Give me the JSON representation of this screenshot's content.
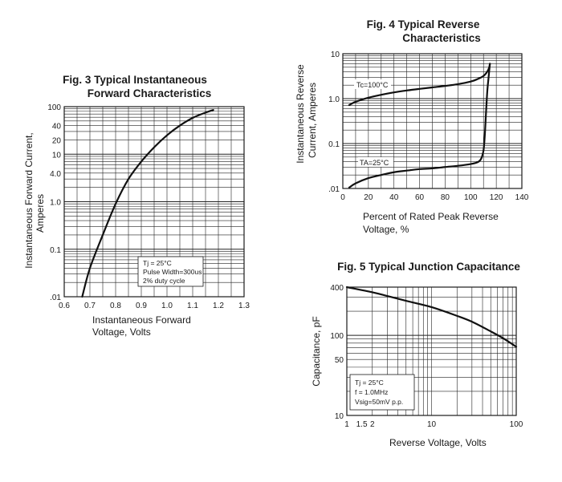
{
  "chart_data": [
    {
      "id": "fig3",
      "type": "line",
      "title_line1": "Fig. 3 Typical Instantaneous",
      "title_line2": "Forward Characteristics",
      "xlabel_line1": "Instantaneous Forward",
      "xlabel_line2": "Voltage, Volts",
      "ylabel_line1": "Instantaneous Forward Current,",
      "ylabel_line2": "Amperes",
      "x_scale": "linear",
      "y_scale": "log",
      "xlim": [
        0.6,
        1.3
      ],
      "ylim": [
        0.01,
        100
      ],
      "x_ticks": [
        0.6,
        0.7,
        0.8,
        0.9,
        1.0,
        1.1,
        1.2,
        1.3
      ],
      "x_tick_labels": [
        "0.6",
        "0.7",
        "0.8",
        "0.9",
        "1.0",
        "1.1",
        "1.2",
        "1.3"
      ],
      "y_ticks": [
        0.01,
        0.1,
        1.0,
        4.0,
        10,
        20,
        40,
        100
      ],
      "y_tick_labels": [
        ".01",
        "0.1",
        "1.0",
        "4.0",
        "10",
        "20",
        "40",
        "100"
      ],
      "grid": true,
      "annotation_lines": [
        "Tj = 25°C",
        "Pulse Width=300us",
        "2% duty cycle"
      ],
      "series": [
        {
          "name": "",
          "x": [
            0.67,
            0.7,
            0.75,
            0.8,
            0.85,
            0.9,
            0.95,
            1.0,
            1.05,
            1.1,
            1.15,
            1.18
          ],
          "y": [
            0.01,
            0.04,
            0.2,
            0.9,
            3.0,
            7.0,
            14,
            25,
            40,
            58,
            75,
            85
          ]
        }
      ]
    },
    {
      "id": "fig4",
      "type": "line",
      "title_line1": "Fig. 4 Typical Reverse",
      "title_line2": "Characteristics",
      "xlabel_line1": "Percent of Rated Peak Reverse",
      "xlabel_line2": "Voltage, %",
      "ylabel_line1": "Instantaneous Reverse",
      "ylabel_line2": "Current, Amperes",
      "x_scale": "linear",
      "y_scale": "log",
      "xlim": [
        0,
        140
      ],
      "ylim": [
        0.01,
        10
      ],
      "x_ticks": [
        0,
        20,
        40,
        60,
        80,
        100,
        120,
        140
      ],
      "x_tick_labels": [
        "0",
        "20",
        "40",
        "60",
        "80",
        "100",
        "120",
        "140"
      ],
      "y_ticks": [
        0.01,
        0.1,
        1.0,
        10
      ],
      "y_tick_labels": [
        ".01",
        "0.1",
        "1.0",
        "10"
      ],
      "grid": true,
      "series": [
        {
          "name": "Tc=100°C",
          "x": [
            5,
            10,
            20,
            30,
            40,
            50,
            60,
            70,
            80,
            90,
            100,
            105,
            110,
            113,
            114.5,
            115
          ],
          "y": [
            0.72,
            0.85,
            1.05,
            1.22,
            1.38,
            1.52,
            1.65,
            1.78,
            1.92,
            2.1,
            2.4,
            2.7,
            3.2,
            4.0,
            5.0,
            6.0
          ]
        },
        {
          "name": "TA=25°C",
          "x": [
            5,
            10,
            20,
            30,
            40,
            50,
            60,
            70,
            80,
            90,
            100,
            105,
            108,
            110,
            111,
            112,
            113,
            114,
            115
          ],
          "y": [
            0.0105,
            0.013,
            0.017,
            0.02,
            0.023,
            0.025,
            0.027,
            0.028,
            0.03,
            0.032,
            0.035,
            0.038,
            0.045,
            0.07,
            0.15,
            0.5,
            1.5,
            3.0,
            6.0
          ]
        }
      ]
    },
    {
      "id": "fig5",
      "type": "line",
      "title_line1": "Fig. 5 Typical Junction Capacitance",
      "title_line2": "",
      "xlabel_line1": "Reverse Voltage, Volts",
      "ylabel_line1": "Capacitance, pF",
      "x_scale": "log",
      "y_scale": "log",
      "xlim": [
        1,
        100
      ],
      "ylim": [
        10,
        400
      ],
      "x_ticks": [
        1,
        1.5,
        2,
        10,
        100
      ],
      "x_tick_labels": [
        "1",
        "1.5",
        "2",
        "10",
        "100"
      ],
      "y_ticks": [
        10,
        50,
        100,
        400
      ],
      "y_tick_labels": [
        "10",
        "50",
        "100",
        "400"
      ],
      "grid": true,
      "annotation_lines": [
        "Tj = 25°C",
        "f = 1.0MHz",
        "Vsig=50mV p.p."
      ],
      "series": [
        {
          "name": "",
          "x": [
            1,
            2,
            3,
            5,
            10,
            20,
            30,
            50,
            70,
            100
          ],
          "y": [
            400,
            345,
            310,
            270,
            225,
            175,
            148,
            112,
            92,
            72
          ]
        }
      ]
    }
  ]
}
